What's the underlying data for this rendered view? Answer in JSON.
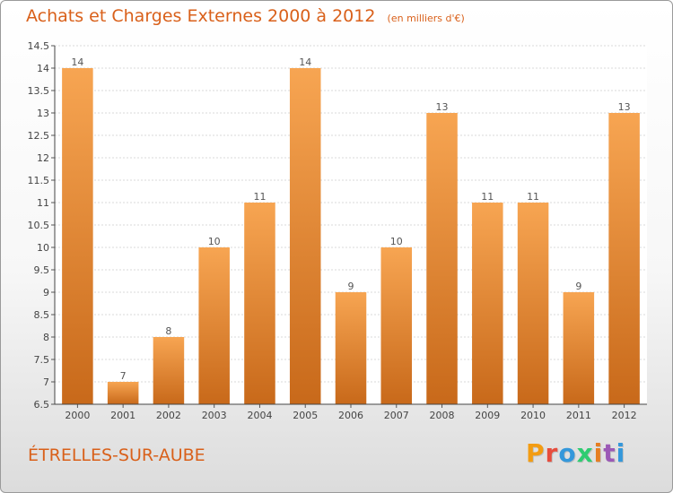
{
  "header": {
    "title": "Achats et Charges Externes 2000 à 2012",
    "unit": "(en milliers d'€)"
  },
  "footer": {
    "commune": "ÉTRELLES-SUR-AUBE",
    "logo": "Proxiti"
  },
  "colors": {
    "bar_top": "#f7a552",
    "bar_bottom": "#c8691a",
    "title": "#d9601a",
    "logo_letters": [
      "#f39c12",
      "#e74c3c",
      "#3498db",
      "#2ecc71",
      "#e67e22",
      "#9b59b6",
      "#3498db"
    ]
  },
  "chart_data": {
    "type": "bar",
    "categories": [
      "2000",
      "2001",
      "2002",
      "2003",
      "2004",
      "2005",
      "2006",
      "2007",
      "2008",
      "2009",
      "2010",
      "2011",
      "2012"
    ],
    "values": [
      14,
      7,
      8,
      10,
      11,
      14,
      9,
      10,
      13,
      11,
      11,
      9,
      13
    ],
    "ylim": [
      6.5,
      14.5
    ],
    "yticks": [
      "6.5",
      "7",
      "7.5",
      "8",
      "8.5",
      "9",
      "9.5",
      "10",
      "10.5",
      "11",
      "11.5",
      "12",
      "12.5",
      "13",
      "13.5",
      "14",
      "14.5"
    ],
    "grid": true
  }
}
